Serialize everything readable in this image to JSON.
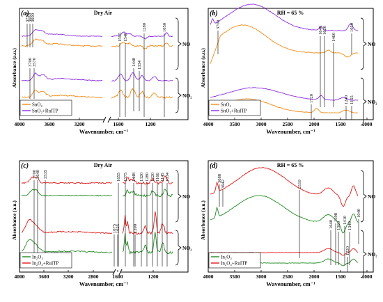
{
  "chart_data": [
    {
      "panel": "(a)",
      "type": "line",
      "title": "Dry Air",
      "xlabel": "Wavenumber, cm⁻¹",
      "ylabel": "Absorbance (a.u.)",
      "x_ticks": [
        "4000",
        "3600",
        "3200",
        "1600",
        "1200"
      ],
      "xlim_left": [
        4000,
        2900
      ],
      "xlim_right": [
        1800,
        1000
      ],
      "axis_break": true,
      "x_reversed": true,
      "y_ticks": false,
      "gas_labels": [
        "NO",
        "NO₂"
      ],
      "legend": {
        "position": "bottom-left",
        "entries": [
          "SnO₂",
          "SnO₂+RuITP"
        ]
      },
      "series": [
        {
          "name": "SnO₂",
          "color": "#f28a12"
        },
        {
          "name": "SnO₂+RuITP",
          "color": "#8a2be2"
        }
      ],
      "band_labels": [
        "3720",
        "3660",
        "3600",
        "3700",
        "3570",
        "1595",
        "1540",
        "1280",
        "1050",
        "1448",
        "1334"
      ]
    },
    {
      "panel": "(b)",
      "type": "line",
      "title": "RH = 65 %",
      "xlabel": "Wavenumber, cm⁻¹",
      "ylabel": "Absorbance (a.u.)",
      "x_ticks": [
        "4000",
        "3500",
        "3000",
        "2500",
        "2000",
        "1500",
        "1000"
      ],
      "xlim": [
        4000,
        850
      ],
      "x_reversed": true,
      "y_ticks": false,
      "gas_labels": [
        "NO",
        "NO₂"
      ],
      "legend": {
        "position": "bottom-left",
        "entries": [
          "SnO₂",
          "SnO₂+RuITP"
        ]
      },
      "series": [
        {
          "name": "SnO₂",
          "color": "#f28a12"
        },
        {
          "name": "SnO₂+RuITP",
          "color": "#8a2be2"
        }
      ],
      "band_labels": [
        "3700",
        "1640",
        "1620",
        "1460",
        "1050",
        "1720",
        "1240",
        "1155"
      ]
    },
    {
      "panel": "(c)",
      "type": "line",
      "title": "Dry Air",
      "xlabel": "Wavenumber, cm⁻¹",
      "ylabel": "Absorbance (a.u.)",
      "x_ticks": [
        "4000",
        "3600",
        "3200",
        "2800",
        "1600",
        "1200"
      ],
      "xlim_left": [
        4000,
        2600
      ],
      "xlim_right": [
        1750,
        1000
      ],
      "axis_break": true,
      "x_reversed": true,
      "y_ticks": false,
      "gas_labels": [
        "NO",
        "NO₂"
      ],
      "legend": {
        "position": "bottom-left",
        "entries": [
          "In₂O₃",
          "In₂O₃+RuITP"
        ]
      },
      "series": [
        {
          "name": "In₂O₃",
          "color": "#1f8a1f"
        },
        {
          "name": "In₂O₃+RuITP",
          "color": "#e01818"
        }
      ],
      "band_labels": [
        "3700",
        "3640",
        "3535",
        "1655",
        "1575",
        "1448",
        "1320",
        "1280",
        "1220",
        "1166",
        "1145",
        "1034",
        "1675",
        "1625",
        "1390"
      ]
    },
    {
      "panel": "(d)",
      "type": "line",
      "title": "RH = 65 %",
      "xlabel": "Wavenumber, cm⁻¹",
      "ylabel": "Absorbance (a.u.)",
      "x_ticks": [
        "4000",
        "3500",
        "3000",
        "2500",
        "2000",
        "1500",
        "1000"
      ],
      "xlim": [
        4000,
        850
      ],
      "x_reversed": true,
      "y_ticks": false,
      "gas_labels": [
        "NO",
        "NO₂"
      ],
      "legend": {
        "position": "bottom-left",
        "entries": [
          "In₂O₃",
          "In₂O₃+RuITP"
        ]
      },
      "series": [
        {
          "name": "In₂O₃",
          "color": "#1f8a1f"
        },
        {
          "name": "In₂O₃+RuITP",
          "color": "#e01818"
        }
      ],
      "band_labels": [
        "3688",
        "3642",
        "2110",
        "1640",
        "1598",
        "1560",
        "1410",
        "1340",
        "1220",
        "1040"
      ]
    }
  ]
}
